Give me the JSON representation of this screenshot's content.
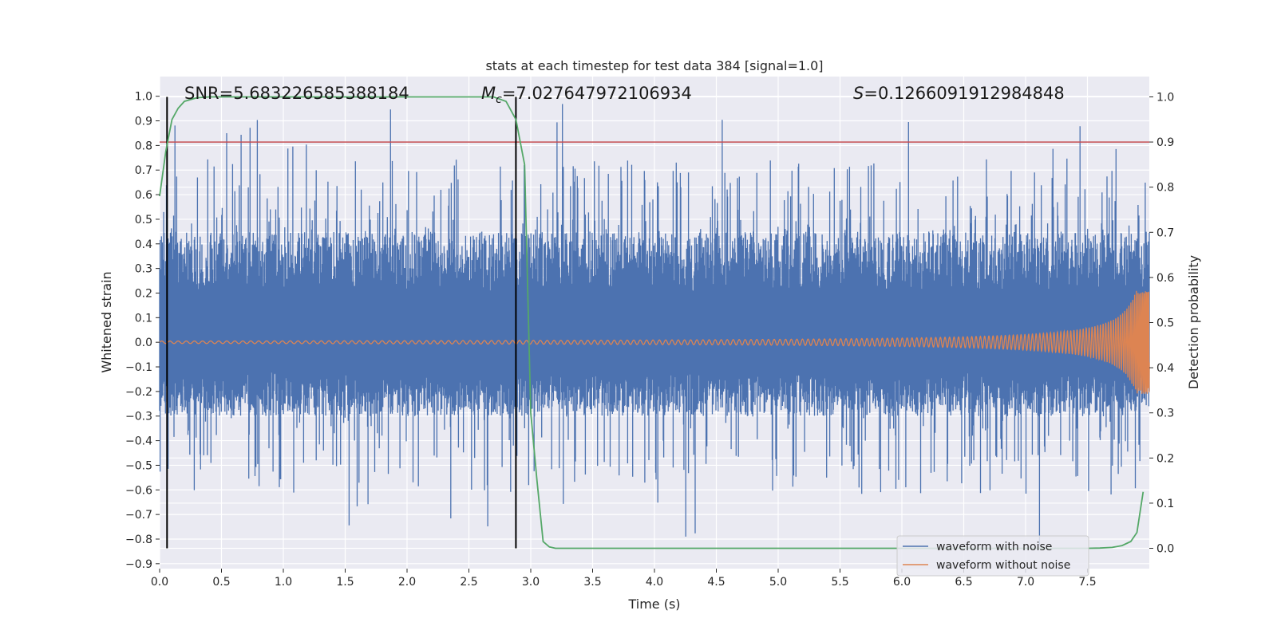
{
  "chart_data": {
    "type": "line",
    "title": "stats at each timestep for test data 384 [signal=1.0]",
    "xlabel": "Time (s)",
    "ylabel": "Whitened strain",
    "y2label": "Detection probability",
    "xlim": [
      0.0,
      8.0
    ],
    "ylim": [
      -0.92,
      1.08
    ],
    "y2lim": [
      -0.045,
      1.045
    ],
    "xticks": [
      "0.0",
      "0.5",
      "1.0",
      "1.5",
      "2.0",
      "2.5",
      "3.0",
      "3.5",
      "4.0",
      "4.5",
      "5.0",
      "5.5",
      "6.0",
      "6.5",
      "7.0",
      "7.5"
    ],
    "yticks": [
      "1.0",
      "0.9",
      "0.8",
      "0.7",
      "0.6",
      "0.5",
      "0.4",
      "0.3",
      "0.2",
      "0.1",
      "0.0",
      "−0.1",
      "−0.2",
      "−0.3",
      "−0.4",
      "−0.5",
      "−0.6",
      "−0.7",
      "−0.8",
      "−0.9"
    ],
    "y2ticks": [
      "1.0",
      "0.9",
      "0.8",
      "0.7",
      "0.6",
      "0.5",
      "0.4",
      "0.3",
      "0.2",
      "0.1",
      "0.0"
    ],
    "annotations": {
      "snr": "SNR=5.683226585388184",
      "mc_symbol": "M",
      "mc_sub": "c",
      "mc_value": "=7.027647972106934",
      "s_symbol": "S",
      "s_value": "=0.1266091912984848"
    },
    "threshold": {
      "axis": "y2",
      "value": 0.9,
      "color": "#c44e52"
    },
    "vlines": [
      0.06,
      2.88
    ],
    "legend": {
      "placement": "lower-right",
      "entries": [
        "waveform with noise",
        "waveform without noise"
      ]
    },
    "series": [
      {
        "name": "waveform with noise",
        "color": "#4c72b0",
        "kind": "noisy-strain",
        "typical_range": [
          -0.3,
          0.45
        ],
        "extreme_range": [
          -0.83,
          1.0
        ]
      },
      {
        "name": "waveform without noise",
        "color": "#dd8452",
        "kind": "chirp",
        "amplitude_start": 0.005,
        "amplitude_end": 0.21,
        "end_time": 8.0
      },
      {
        "name": "Detection probability",
        "color": "#55a868",
        "axis": "y2",
        "x": [
          0.0,
          0.05,
          0.1,
          0.15,
          0.2,
          0.3,
          0.4,
          0.5,
          1.0,
          1.5,
          2.0,
          2.5,
          2.7,
          2.8,
          2.88,
          2.95,
          3.0,
          3.05,
          3.1,
          3.15,
          3.2,
          3.5,
          4.0,
          5.0,
          6.0,
          7.0,
          7.5,
          7.6,
          7.7,
          7.78,
          7.85,
          7.9,
          7.95
        ],
        "y": [
          0.78,
          0.88,
          0.95,
          0.975,
          0.99,
          0.998,
          1.0,
          1.0,
          1.0,
          1.0,
          1.0,
          1.0,
          1.0,
          0.99,
          0.95,
          0.85,
          0.3,
          0.15,
          0.015,
          0.003,
          0.0,
          0.0,
          0.0,
          0.0,
          0.0,
          0.0,
          0.0,
          0.0005,
          0.002,
          0.006,
          0.015,
          0.035,
          0.125
        ]
      }
    ]
  }
}
